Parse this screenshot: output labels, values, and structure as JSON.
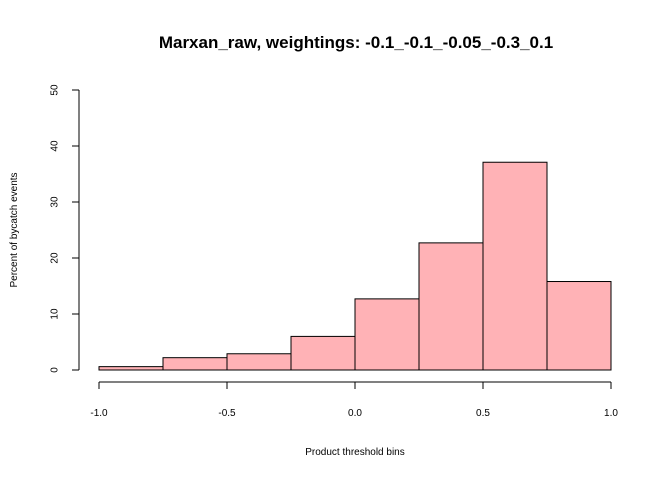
{
  "chart_data": {
    "type": "bar",
    "title": "Marxan_raw, weightings: -0.1_-0.1_-0.05_-0.3_0.1",
    "xlabel": "Product threshold bins",
    "ylabel": "Percent of bycatch events",
    "xlim": [
      -1.0,
      1.0
    ],
    "ylim": [
      0,
      50
    ],
    "x_ticks": [
      -1.0,
      -0.5,
      0.0,
      0.5,
      1.0
    ],
    "x_tick_labels": [
      "-1.0",
      "-0.5",
      "0.0",
      "0.5",
      "1.0"
    ],
    "y_ticks": [
      0,
      10,
      20,
      30,
      40,
      50
    ],
    "y_tick_labels": [
      "0",
      "10",
      "20",
      "30",
      "40",
      "50"
    ],
    "bins": [
      {
        "from": -1.0,
        "to": -0.75,
        "value": 0.6
      },
      {
        "from": -0.75,
        "to": -0.5,
        "value": 2.2
      },
      {
        "from": -0.5,
        "to": -0.25,
        "value": 2.9
      },
      {
        "from": -0.25,
        "to": 0.0,
        "value": 6.0
      },
      {
        "from": 0.0,
        "to": 0.25,
        "value": 12.7
      },
      {
        "from": 0.25,
        "to": 0.5,
        "value": 22.7
      },
      {
        "from": 0.5,
        "to": 0.75,
        "value": 37.1
      },
      {
        "from": 0.75,
        "to": 1.0,
        "value": 15.8
      }
    ],
    "bar_color": "#ffb2b6",
    "grid": false,
    "legend": "none"
  }
}
